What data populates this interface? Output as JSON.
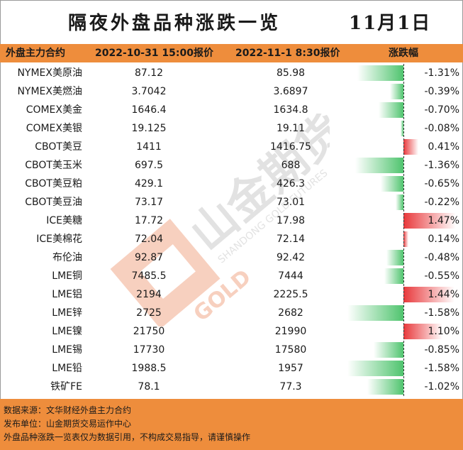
{
  "header": {
    "title": "隔夜外盘品种涨跌一览",
    "date": "11月1日"
  },
  "columns": {
    "contract": "外盘主力合约",
    "price_prev": "2022-10-31 15:00报价",
    "price_now": "2022-11-1 8:30报价",
    "change": "涨跌幅"
  },
  "rows": [
    {
      "name": "NYMEX美原油",
      "prev": "87.12",
      "now": "85.98",
      "pct": "-1.31%",
      "value": -1.31
    },
    {
      "name": "NYMEX美燃油",
      "prev": "3.7042",
      "now": "3.6897",
      "pct": "-0.39%",
      "value": -0.39
    },
    {
      "name": "COMEX美金",
      "prev": "1646.4",
      "now": "1634.8",
      "pct": "-0.70%",
      "value": -0.7
    },
    {
      "name": "COMEX美银",
      "prev": "19.125",
      "now": "19.11",
      "pct": "-0.08%",
      "value": -0.08
    },
    {
      "name": "CBOT美豆",
      "prev": "1411",
      "now": "1416.75",
      "pct": "0.41%",
      "value": 0.41
    },
    {
      "name": "CBOT美玉米",
      "prev": "697.5",
      "now": "688",
      "pct": "-1.36%",
      "value": -1.36
    },
    {
      "name": "CBOT美豆粕",
      "prev": "429.1",
      "now": "426.3",
      "pct": "-0.65%",
      "value": -0.65
    },
    {
      "name": "CBOT美豆油",
      "prev": "73.17",
      "now": "73.01",
      "pct": "-0.22%",
      "value": -0.22
    },
    {
      "name": "ICE美糖",
      "prev": "17.72",
      "now": "17.98",
      "pct": "1.47%",
      "value": 1.47
    },
    {
      "name": "ICE美棉花",
      "prev": "72.04",
      "now": "72.14",
      "pct": "0.14%",
      "value": 0.14
    },
    {
      "name": "布伦油",
      "prev": "92.87",
      "now": "92.42",
      "pct": "-0.48%",
      "value": -0.48
    },
    {
      "name": "LME铜",
      "prev": "7485.5",
      "now": "7444",
      "pct": "-0.55%",
      "value": -0.55
    },
    {
      "name": "LME铝",
      "prev": "2194",
      "now": "2225.5",
      "pct": "1.44%",
      "value": 1.44
    },
    {
      "name": "LME锌",
      "prev": "2725",
      "now": "2682",
      "pct": "-1.58%",
      "value": -1.58
    },
    {
      "name": "LME镍",
      "prev": "21750",
      "now": "21990",
      "pct": "1.10%",
      "value": 1.1
    },
    {
      "name": "LME锡",
      "prev": "17730",
      "now": "17580",
      "pct": "-0.85%",
      "value": -0.85
    },
    {
      "name": "LME铅",
      "prev": "1988.5",
      "now": "1957",
      "pct": "-1.58%",
      "value": -1.58
    },
    {
      "name": "铁矿FE",
      "prev": "78.1",
      "now": "77.3",
      "pct": "-1.02%",
      "value": -1.02
    }
  ],
  "footer": {
    "source": "数据来源：文华财经外盘主力合约",
    "publisher": "发布单位：山金期货交易运作中心",
    "disclaimer": "外盘品种涨跌一览表仅为数据引用，不构成交易指导，请谨慎操作"
  },
  "watermark": {
    "brand": "山金期货",
    "english": "SHANDONG GOLD FUTURES",
    "gold": "GOLD"
  },
  "colors": {
    "header_bg": "#ee8d3c",
    "negative": "#4fc46e",
    "positive": "#e8383b"
  }
}
